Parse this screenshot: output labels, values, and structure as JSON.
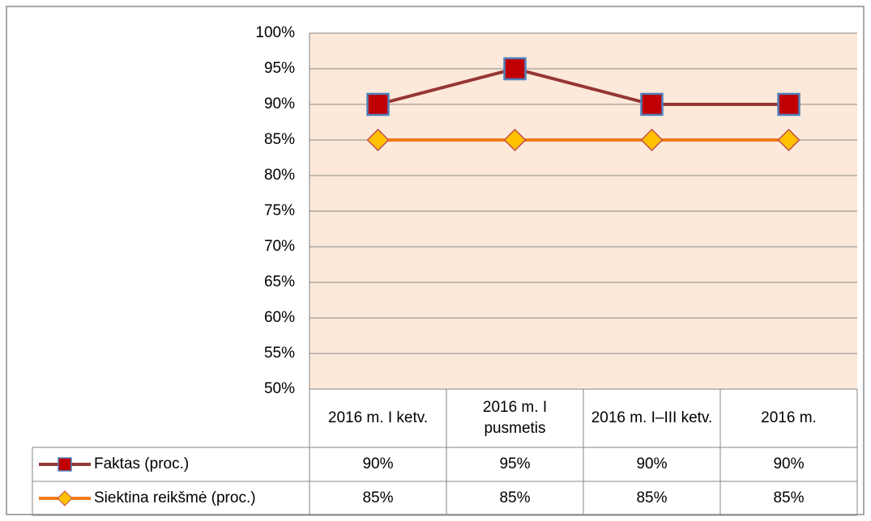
{
  "chart_data": {
    "type": "line",
    "categories": [
      "2016 m. I ketv.",
      "2016 m. I pusmetis",
      "2016 m. I–III ketv.",
      "2016 m."
    ],
    "series": [
      {
        "name": "Faktas (proc.)",
        "color": "#953735",
        "marker": "square",
        "marker_fill": "#c00000",
        "marker_edge": "#4f81bd",
        "values": [
          90,
          95,
          90,
          90
        ],
        "value_labels": [
          "90%",
          "95%",
          "90%",
          "90%"
        ]
      },
      {
        "name": "Siektina reikšmė (proc.)",
        "color": "#f07c1a",
        "marker": "diamond",
        "marker_fill": "#ffc000",
        "marker_edge": "#c0504d",
        "values": [
          85,
          85,
          85,
          85
        ],
        "value_labels": [
          "85%",
          "85%",
          "85%",
          "85%"
        ]
      }
    ],
    "ylim": [
      50,
      100
    ],
    "yticks": [
      {
        "value": 50,
        "label": "50%"
      },
      {
        "value": 55,
        "label": "55%"
      },
      {
        "value": 60,
        "label": "60%"
      },
      {
        "value": 65,
        "label": "65%"
      },
      {
        "value": 70,
        "label": "70%"
      },
      {
        "value": 75,
        "label": "75%"
      },
      {
        "value": 80,
        "label": "80%"
      },
      {
        "value": 85,
        "label": "85%"
      },
      {
        "value": 90,
        "label": "90%"
      },
      {
        "value": 95,
        "label": "95%"
      },
      {
        "value": 100,
        "label": "100%"
      }
    ],
    "grid": true,
    "plot_background": "#fde9d9",
    "data_table": true
  }
}
